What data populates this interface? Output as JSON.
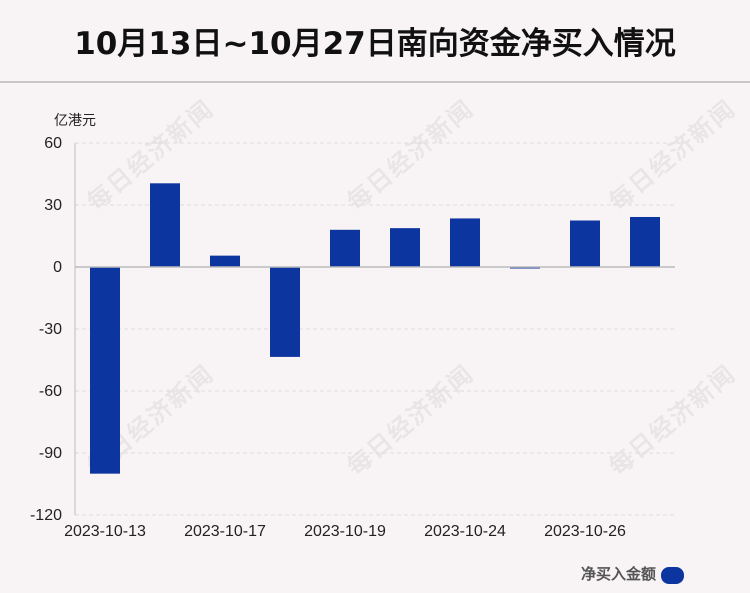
{
  "title": "10月13日~10月27日南向资金净买入情况",
  "watermark": "每日经济新闻",
  "colors": {
    "bar": "#0d35a0",
    "grid": "#dddddd",
    "axis": "#bbbbbb",
    "text": "#222222"
  },
  "chart_data": {
    "type": "bar",
    "ylabel": "亿港元",
    "ylim": [
      -120,
      60
    ],
    "yticks": [
      60,
      30,
      0,
      -30,
      -60,
      -90,
      -120
    ],
    "categories": [
      "2023-10-13",
      "",
      "2023-10-17",
      "",
      "2023-10-19",
      "",
      "2023-10-24",
      "",
      "2023-10-26",
      ""
    ],
    "series": [
      {
        "name": "净买入金额",
        "values": [
          -100,
          40.5,
          5.5,
          -43.5,
          18,
          18.8,
          23.5,
          -0.5,
          22.5,
          24.2
        ]
      }
    ],
    "legend": {
      "position": "bottom-right",
      "label": "净买入金额"
    },
    "grid": true
  }
}
